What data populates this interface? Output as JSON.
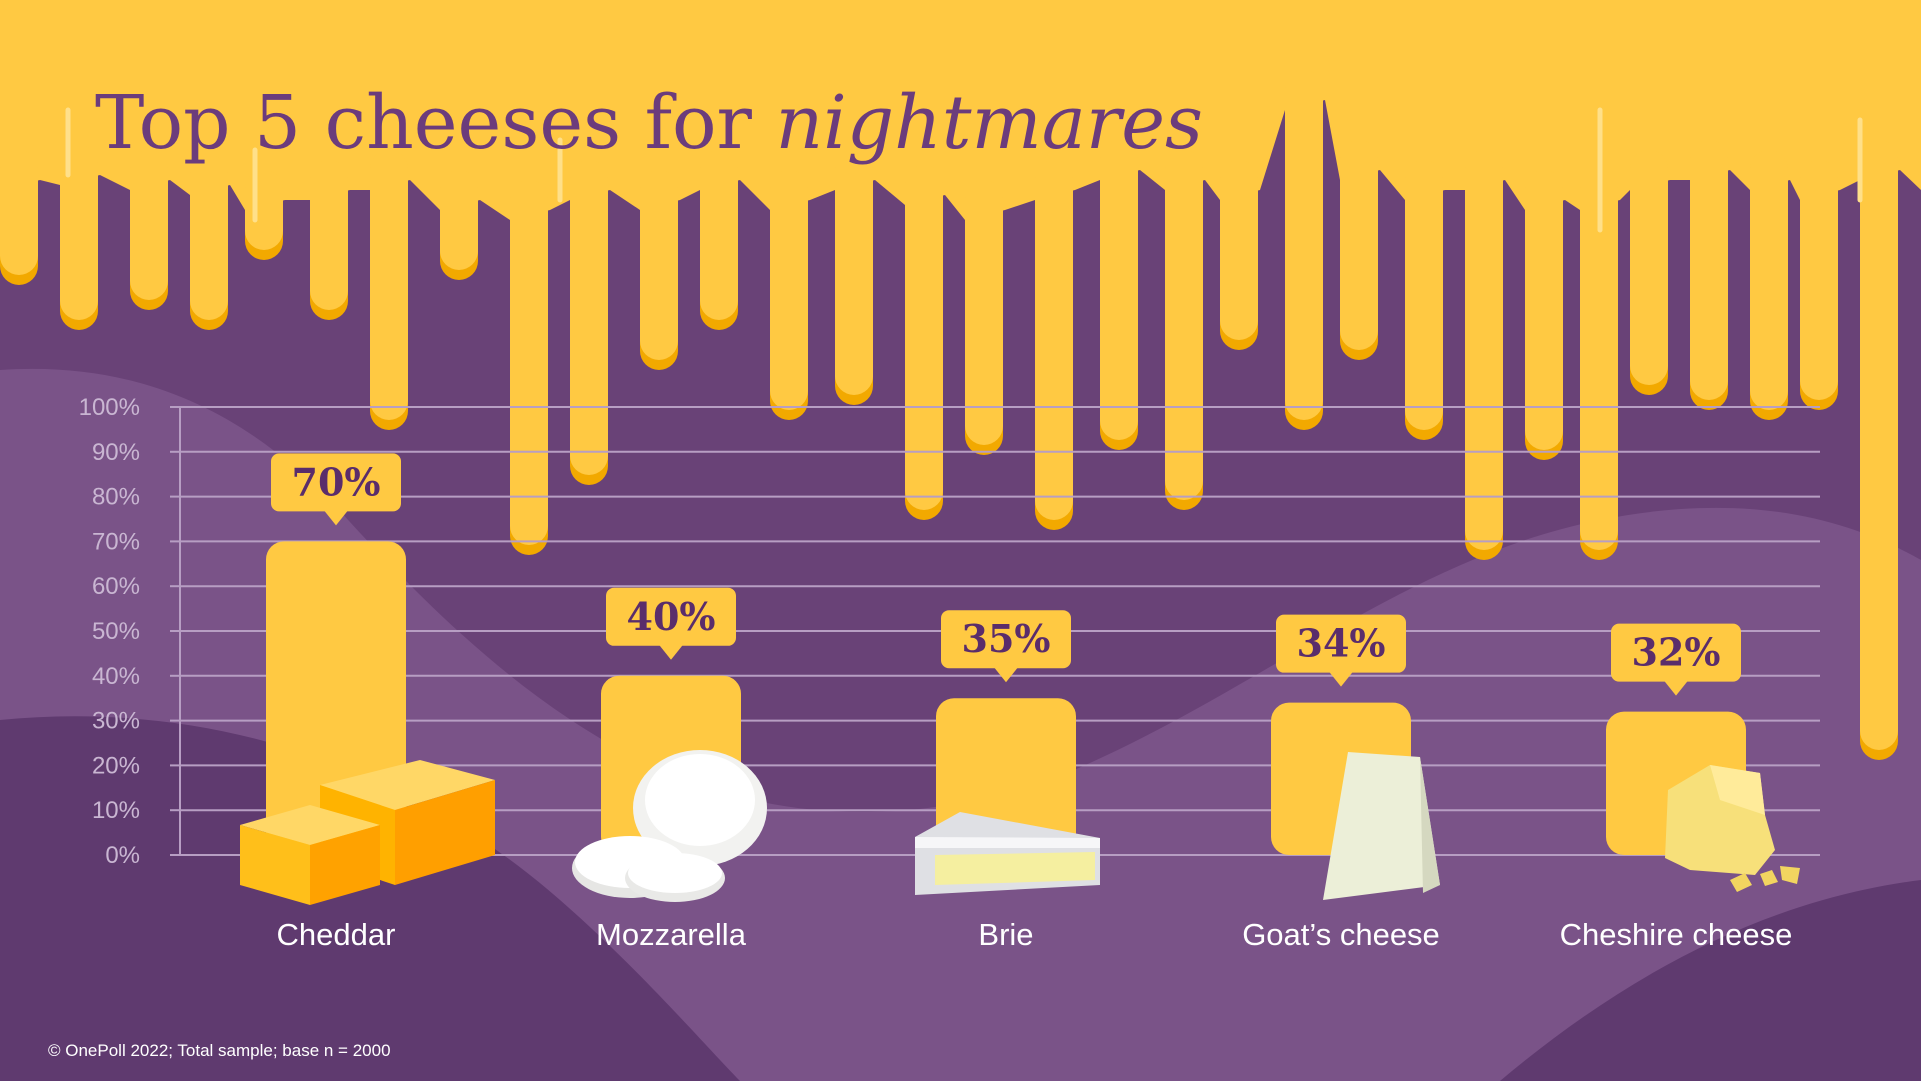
{
  "title": {
    "plain": "Top 5 cheeses for ",
    "italic": "nightmares"
  },
  "source_note": "© OnePoll 2022; Total sample; base n = 2000",
  "colors": {
    "background": "#694277",
    "background_light": "#7a5388",
    "cheese": "#ffc942",
    "cheese_shadow": "#f2a900",
    "title": "#6b3c7c",
    "gridline": "#b79ec3",
    "tick_label": "#c9b6d2",
    "category_label": "#ffffff",
    "value_label": "#5a2d6b"
  },
  "chart_data": {
    "type": "bar",
    "categories": [
      "Cheddar",
      "Mozzarella",
      "Brie",
      "Goat’s cheese",
      "Cheshire cheese"
    ],
    "values": [
      70,
      40,
      35,
      34,
      32
    ],
    "value_labels": [
      "70%",
      "40%",
      "35%",
      "34%",
      "32%"
    ],
    "ylim": [
      0,
      100
    ],
    "yticks": [
      "0%",
      "10%",
      "20%",
      "30%",
      "40%",
      "50%",
      "60%",
      "70%",
      "80%",
      "90%",
      "100%"
    ],
    "grid": true,
    "legend": "none",
    "illustrations": [
      "cheddar-blocks",
      "mozzarella-balls",
      "brie-wedge",
      "goats-cheese-wedge",
      "cheshire-crumbly"
    ]
  }
}
